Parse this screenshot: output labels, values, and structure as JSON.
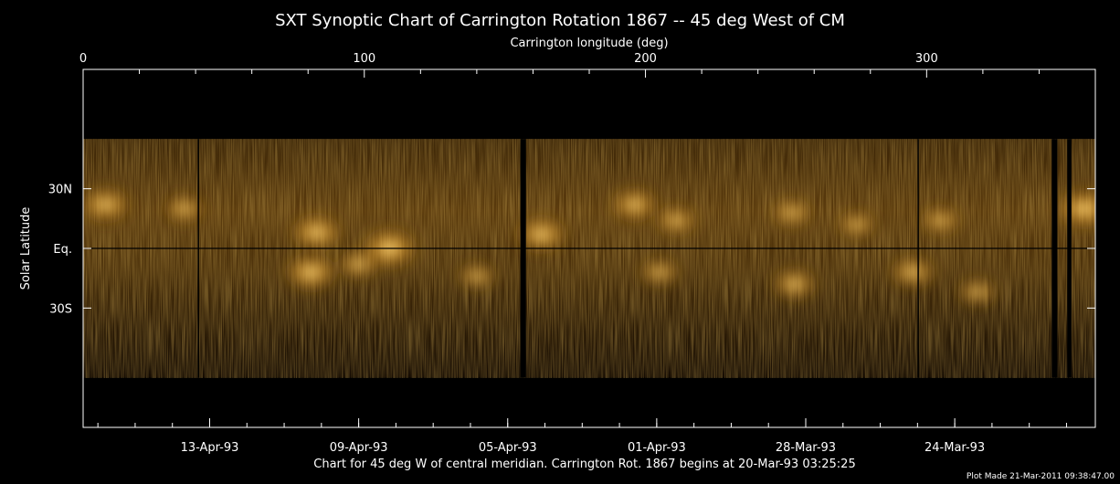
{
  "chart_data": {
    "type": "heatmap",
    "title": "SXT Synoptic Chart of Carrington Rotation 1867 -- 45 deg West of CM",
    "top_axis": {
      "label": "Carrington longitude (deg)",
      "range": [
        0,
        360
      ],
      "major_ticks": [
        0,
        100,
        200,
        300
      ],
      "minor_step": 20
    },
    "left_axis": {
      "label": "Solar Latitude",
      "range": [
        -90,
        90
      ],
      "ticks": [
        {
          "value": 30,
          "label": "30N"
        },
        {
          "value": 0,
          "label": "Eq."
        },
        {
          "value": -30,
          "label": "30S"
        }
      ]
    },
    "bottom_axis": {
      "ticks": [
        {
          "longitude": 45,
          "label": "13-Apr-93"
        },
        {
          "longitude": 98,
          "label": "09-Apr-93"
        },
        {
          "longitude": 151,
          "label": "05-Apr-93"
        },
        {
          "longitude": 204,
          "label": "01-Apr-93"
        },
        {
          "longitude": 257,
          "label": "28-Mar-93"
        },
        {
          "longitude": 310,
          "label": "24-Mar-93"
        }
      ],
      "minor_per_major": 4
    },
    "footer": "Chart for 45 deg W of central meridian.  Carrington Rot. 1867 begins at 20-Mar-93 03:25:25",
    "plot_made": "Plot Made 21-Mar-2011 09:38:47.00",
    "colors": {
      "background": "#000000",
      "low": "#1a0e02",
      "mid": "#7a4a0c",
      "high": "#ffe08a"
    },
    "data_coverage_latitude": [
      -65,
      55
    ],
    "gaps_longitude": [
      [
        155.5,
        157.5
      ],
      [
        344.5,
        346.5
      ],
      [
        350,
        351.5
      ]
    ],
    "thin_lines_longitude": [
      41,
      297
    ],
    "bright_regions": [
      {
        "lon": 8,
        "lat": 22,
        "intensity": 0.8
      },
      {
        "lon": 36,
        "lat": 20,
        "intensity": 0.55
      },
      {
        "lon": 83,
        "lat": 8,
        "intensity": 0.85
      },
      {
        "lon": 81,
        "lat": -12,
        "intensity": 0.9
      },
      {
        "lon": 109,
        "lat": 0,
        "intensity": 1.0
      },
      {
        "lon": 98,
        "lat": -8,
        "intensity": 0.6
      },
      {
        "lon": 163,
        "lat": 7,
        "intensity": 0.85
      },
      {
        "lon": 196,
        "lat": 22,
        "intensity": 0.75
      },
      {
        "lon": 211,
        "lat": 14,
        "intensity": 0.6
      },
      {
        "lon": 205,
        "lat": -12,
        "intensity": 0.55
      },
      {
        "lon": 252,
        "lat": 18,
        "intensity": 0.55
      },
      {
        "lon": 253,
        "lat": -18,
        "intensity": 0.7
      },
      {
        "lon": 275,
        "lat": 12,
        "intensity": 0.5
      },
      {
        "lon": 295,
        "lat": -12,
        "intensity": 0.7
      },
      {
        "lon": 305,
        "lat": 14,
        "intensity": 0.55
      },
      {
        "lon": 318,
        "lat": -22,
        "intensity": 0.55
      },
      {
        "lon": 356,
        "lat": 20,
        "intensity": 0.95
      },
      {
        "lon": 140,
        "lat": -14,
        "intensity": 0.5
      }
    ]
  }
}
